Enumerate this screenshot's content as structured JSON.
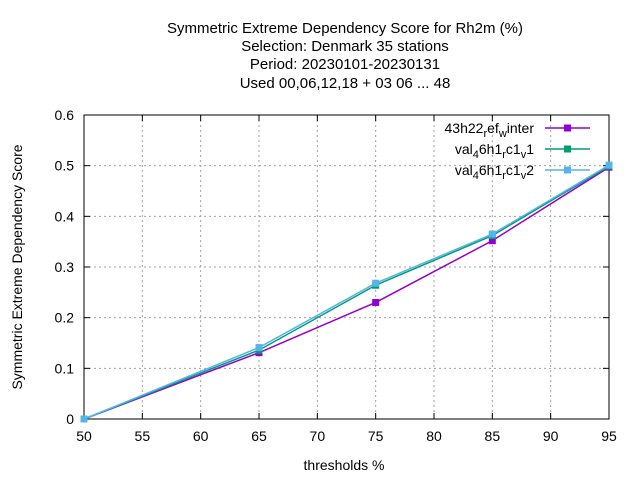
{
  "chart_data": {
    "type": "line",
    "title_lines": [
      "Symmetric Extreme Dependency Score  for Rh2m (%)",
      "Selection: Denmark      35 stations",
      "Period: 20230101-20230131",
      "Used  00,06,12,18  + 03 06 ... 48"
    ],
    "xlabel": "thresholds %",
    "ylabel": "Symmetric Extreme Dependency Score",
    "xlim": [
      50,
      95
    ],
    "ylim": [
      0,
      0.6
    ],
    "xticks": [
      "50",
      "55",
      "60",
      "65",
      "70",
      "75",
      "80",
      "85",
      "90",
      "95"
    ],
    "yticks": [
      "0",
      "0.1",
      "0.2",
      "0.3",
      "0.4",
      "0.5",
      "0.6"
    ],
    "grid": true,
    "legend_position": "top-right",
    "series": [
      {
        "name": "43h22_ref_winter",
        "legend_parts": [
          "43h22",
          "r",
          "ef",
          "w",
          "inter"
        ],
        "color": "#9400d3",
        "x": [
          50,
          65,
          75,
          85,
          95
        ],
        "y": [
          0.0,
          0.131,
          0.23,
          0.352,
          0.497
        ]
      },
      {
        "name": "val_46h1_rc1_v1",
        "legend_parts": [
          "val",
          "4",
          "6h1",
          "r",
          "c1",
          "v",
          "1"
        ],
        "color": "#009e73",
        "x": [
          50,
          65,
          75,
          85,
          95
        ],
        "y": [
          0.0,
          0.136,
          0.264,
          0.362,
          0.499
        ]
      },
      {
        "name": "val_46h1_rc1_v2",
        "legend_parts": [
          "val",
          "4",
          "6h1",
          "r",
          "c1",
          "v",
          "2"
        ],
        "color": "#56b4e9",
        "x": [
          50,
          65,
          75,
          85,
          95
        ],
        "y": [
          0.0,
          0.141,
          0.268,
          0.365,
          0.501
        ]
      }
    ]
  }
}
